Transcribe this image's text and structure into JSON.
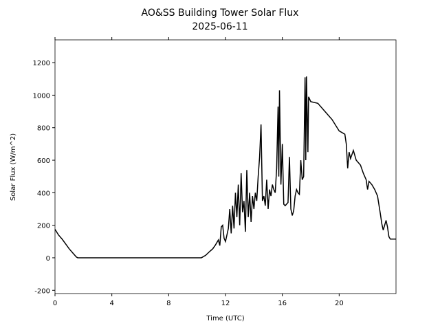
{
  "chart_data": {
    "type": "line",
    "title": "AO&SS Building Tower Solar Flux",
    "subtitle": "2025-06-11",
    "x_label": "Time (UTC)",
    "y_label": "Solar Flux (W/m^2)",
    "color": "#000000",
    "xlim": [
      0,
      24
    ],
    "xticks": [
      0,
      4,
      8,
      12,
      16,
      20
    ],
    "ylim": [
      -220,
      1340
    ],
    "yticks": [
      -200,
      0,
      200,
      400,
      600,
      800,
      1000,
      1200
    ],
    "x": [
      0,
      0.25,
      0.5,
      0.75,
      1.0,
      1.25,
      1.5,
      1.6,
      10.3,
      10.6,
      10.9,
      11.1,
      11.3,
      11.5,
      11.6,
      11.7,
      11.8,
      11.9,
      12.0,
      12.2,
      12.3,
      12.4,
      12.5,
      12.6,
      12.7,
      12.8,
      12.9,
      13.0,
      13.1,
      13.2,
      13.3,
      13.4,
      13.5,
      13.6,
      13.7,
      13.8,
      13.9,
      14.0,
      14.1,
      14.2,
      14.3,
      14.4,
      14.5,
      14.6,
      14.7,
      14.8,
      14.9,
      15.0,
      15.1,
      15.2,
      15.3,
      15.4,
      15.5,
      15.6,
      15.7,
      15.75,
      15.8,
      15.9,
      16.0,
      16.1,
      16.2,
      16.4,
      16.5,
      16.6,
      16.7,
      16.8,
      16.9,
      17.0,
      17.1,
      17.2,
      17.3,
      17.4,
      17.5,
      17.6,
      17.65,
      17.7,
      17.8,
      17.85,
      18.0,
      18.5,
      19.0,
      19.5,
      20.0,
      20.4,
      20.5,
      20.6,
      20.7,
      20.8,
      21.0,
      21.2,
      21.5,
      21.7,
      21.9,
      22.0,
      22.1,
      22.3,
      22.5,
      22.7,
      22.9,
      23.0,
      23.1,
      23.2,
      23.3,
      23.4,
      23.5,
      23.6,
      24.0
    ],
    "values": [
      175,
      140,
      115,
      85,
      55,
      30,
      5,
      0,
      0,
      15,
      40,
      55,
      80,
      110,
      75,
      190,
      200,
      120,
      100,
      180,
      300,
      150,
      320,
      180,
      400,
      250,
      450,
      200,
      520,
      280,
      350,
      160,
      540,
      250,
      400,
      220,
      380,
      300,
      400,
      350,
      500,
      620,
      820,
      350,
      380,
      320,
      480,
      300,
      420,
      380,
      450,
      420,
      400,
      550,
      930,
      500,
      1030,
      450,
      700,
      330,
      320,
      340,
      620,
      300,
      260,
      290,
      380,
      420,
      400,
      390,
      600,
      480,
      500,
      1110,
      600,
      1115,
      650,
      990,
      960,
      950,
      900,
      850,
      780,
      760,
      700,
      550,
      650,
      610,
      660,
      600,
      570,
      520,
      480,
      420,
      470,
      450,
      420,
      380,
      270,
      210,
      170,
      200,
      230,
      190,
      130,
      115,
      115
    ]
  }
}
